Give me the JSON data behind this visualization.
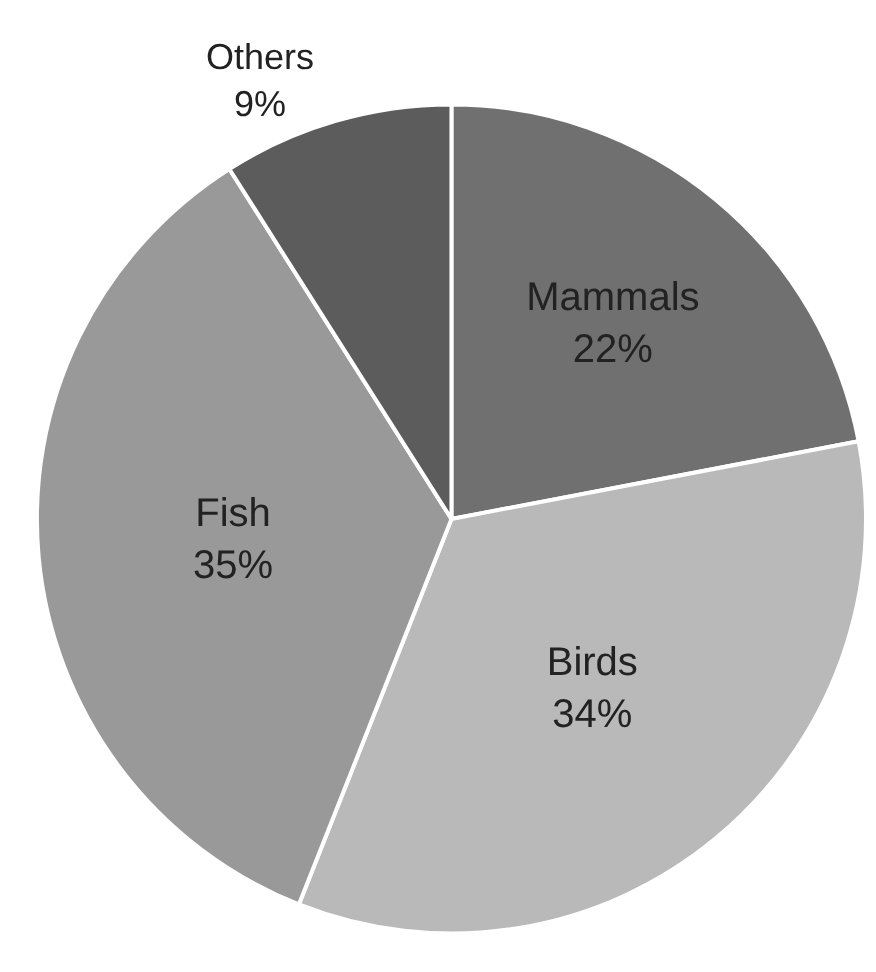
{
  "chart_data": {
    "type": "pie",
    "categories": [
      "Mammals",
      "Birds",
      "Fish",
      "Others"
    ],
    "values": [
      22,
      34,
      35,
      9
    ],
    "value_labels": [
      "22%",
      "34%",
      "35%",
      "9%"
    ],
    "colors": [
      "#707070",
      "#b9b9b9",
      "#999999",
      "#5c5c5c"
    ],
    "legend": false
  }
}
